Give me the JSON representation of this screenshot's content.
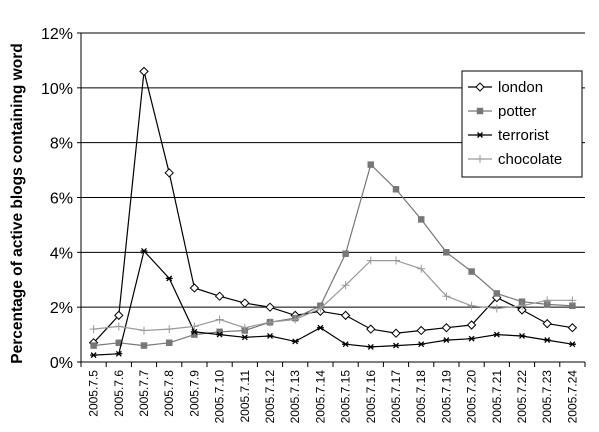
{
  "chart_data": {
    "type": "line",
    "title": "",
    "xlabel": "",
    "ylabel": "Percentage of active blogs containing word",
    "ylim": [
      0,
      12
    ],
    "y_ticks": [
      "0%",
      "2%",
      "4%",
      "6%",
      "8%",
      "10%",
      "12%"
    ],
    "categories": [
      "2005.7.5",
      "2005.7.6",
      "2005.7.7",
      "2005.7.8",
      "2005.7.9",
      "2005.7.10",
      "2005.7.11",
      "2005.7.12",
      "2005.7.13",
      "2005.7.14",
      "2005.7.15",
      "2005.7.16",
      "2005.7.17",
      "2005.7.18",
      "2005.7.19",
      "2005.7.20",
      "2005.7.21",
      "2005.7.22",
      "2005.7.23",
      "2005.7.24"
    ],
    "grid": "horizontal",
    "legend_position": "right",
    "series": [
      {
        "name": "london",
        "marker": "diamond",
        "color": "#000000",
        "values": [
          0.7,
          1.7,
          10.6,
          6.9,
          2.7,
          2.4,
          2.15,
          2.0,
          1.7,
          1.85,
          1.7,
          1.2,
          1.05,
          1.15,
          1.25,
          1.35,
          2.35,
          1.9,
          1.4,
          1.25
        ]
      },
      {
        "name": "potter",
        "marker": "square",
        "color": "#777777",
        "values": [
          0.6,
          0.7,
          0.6,
          0.7,
          1.0,
          1.1,
          1.15,
          1.45,
          1.6,
          2.05,
          3.95,
          7.2,
          6.3,
          5.2,
          4.0,
          3.3,
          2.5,
          2.2,
          2.1,
          2.05
        ]
      },
      {
        "name": "terrorist",
        "marker": "star",
        "color": "#000000",
        "values": [
          0.25,
          0.3,
          4.05,
          3.05,
          1.1,
          1.0,
          0.9,
          0.95,
          0.75,
          1.25,
          0.65,
          0.55,
          0.6,
          0.65,
          0.8,
          0.85,
          1.0,
          0.95,
          0.8,
          0.65
        ]
      },
      {
        "name": "chocolate",
        "marker": "plus",
        "color": "#999999",
        "values": [
          1.2,
          1.3,
          1.15,
          1.2,
          1.3,
          1.55,
          1.25,
          1.45,
          1.55,
          1.95,
          2.8,
          3.7,
          3.7,
          3.4,
          2.4,
          2.05,
          1.95,
          2.05,
          2.25,
          2.25
        ]
      }
    ]
  }
}
